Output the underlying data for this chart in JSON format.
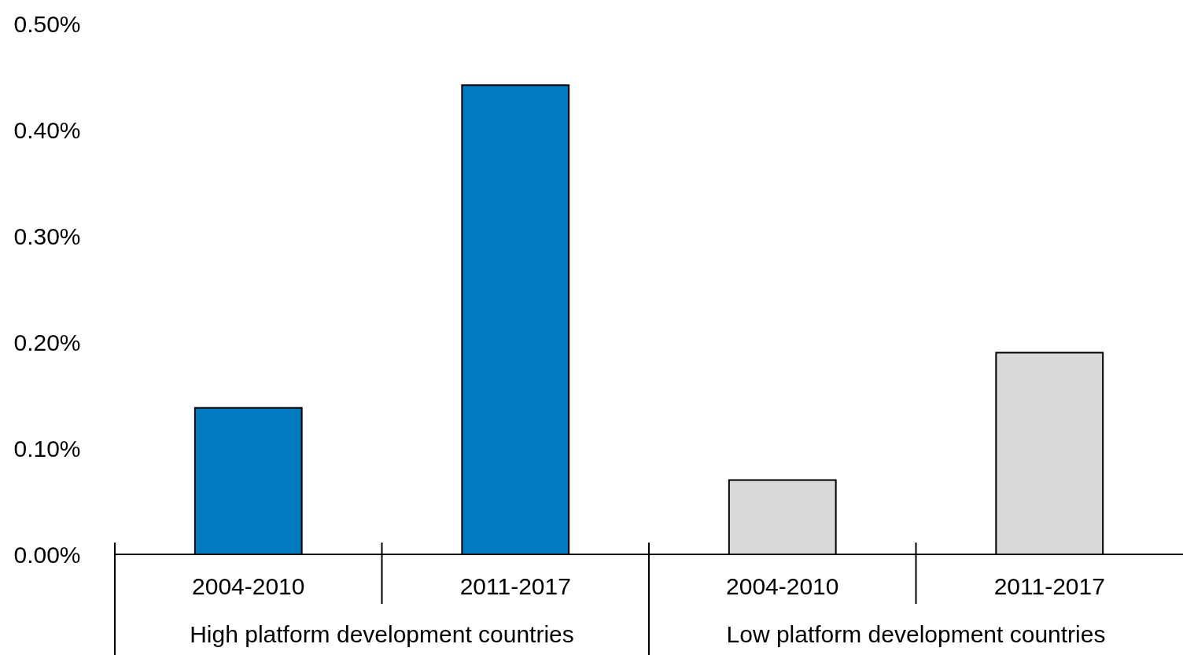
{
  "chart_data": {
    "type": "bar",
    "categories": [
      "2004-2010",
      "2011-2017",
      "2004-2010",
      "2011-2017"
    ],
    "values": [
      0.138,
      0.442,
      0.07,
      0.19
    ],
    "colors": [
      "#0279c1",
      "#0279c1",
      "#d9d9d9",
      "#d9d9d9"
    ],
    "ylim": [
      0,
      0.5
    ],
    "yticks": [
      {
        "value": 0,
        "label": "0.00%"
      },
      {
        "value": 0.1,
        "label": "0.10%"
      },
      {
        "value": 0.2,
        "label": "0.20%"
      },
      {
        "value": 0.3,
        "label": "0.30%"
      },
      {
        "value": 0.4,
        "label": "0.40%"
      },
      {
        "value": 0.5,
        "label": "0.50%"
      }
    ],
    "annotations": [
      "High platform development countries",
      "Low platform development countries"
    ],
    "grid": false
  }
}
